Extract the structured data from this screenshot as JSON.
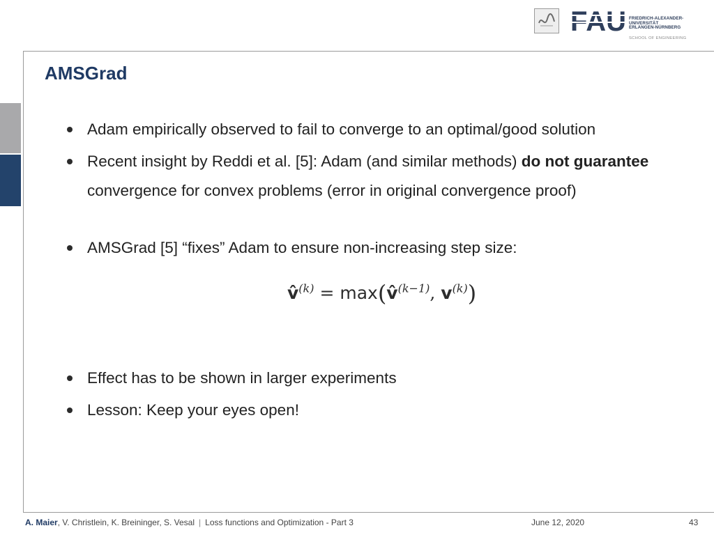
{
  "logo": {
    "wordmark": "FAU",
    "university_lines": [
      "FRIEDRICH-ALEXANDER-",
      "UNIVERSITÄT",
      "ERLANGEN-NÜRNBERG"
    ],
    "school": "SCHOOL OF ENGINEERING"
  },
  "slide": {
    "title": "AMSGrad",
    "bullets": [
      {
        "text_before": "Adam empirically observed to fail to converge to an optimal/good solution",
        "text_bold_1": "",
        "text_after": ""
      },
      {
        "text_before": "Recent insight by Reddi et al. [5]: Adam (and similar methods) ",
        "text_bold_1": "do not guarantee",
        "text_after": " convergence for convex problems (error in original convergence proof)"
      },
      {
        "text_before": "AMSGrad [5] “fixes” Adam to ensure non-increasing step size:",
        "text_bold_1": "",
        "text_after": ""
      },
      {
        "text_before": "Effect has to be shown in larger experiments",
        "text_bold_1": "",
        "text_after": ""
      },
      {
        "text_before": "Lesson: Keep your eyes open!",
        "text_bold_1": "",
        "text_after": ""
      }
    ],
    "formula": {
      "lhs_symbol": "v̂",
      "lhs_sup": "(k)",
      "equals": "=",
      "func": "max",
      "arg1_symbol": "v̂",
      "arg1_sup": "(k−1)",
      "comma": ",",
      "arg2_symbol": "v",
      "arg2_sup": "(k)"
    }
  },
  "footer": {
    "first_author": "A. Maier",
    "other_authors": ", V. Christlein, K. Breininger, S. Vesal",
    "separator": "|",
    "lecture": "Loss functions and Optimization - Part 3",
    "date": "June 12, 2020",
    "page": "43"
  },
  "colors": {
    "title": "#1f3a64",
    "side_bar_gray": "#a9a9ab",
    "side_bar_navy": "#23436b"
  }
}
